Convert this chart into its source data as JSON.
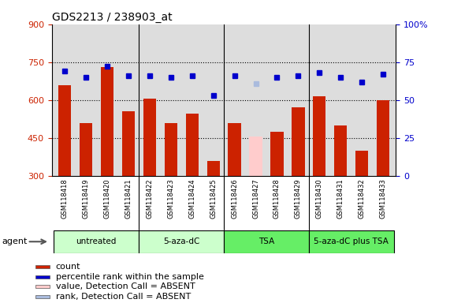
{
  "title": "GDS2213 / 238903_at",
  "samples": [
    "GSM118418",
    "GSM118419",
    "GSM118420",
    "GSM118421",
    "GSM118422",
    "GSM118423",
    "GSM118424",
    "GSM118425",
    "GSM118426",
    "GSM118427",
    "GSM118428",
    "GSM118429",
    "GSM118430",
    "GSM118431",
    "GSM118432",
    "GSM118433"
  ],
  "counts": [
    660,
    510,
    730,
    555,
    605,
    510,
    545,
    360,
    510,
    455,
    475,
    570,
    615,
    500,
    400,
    600
  ],
  "count_absent": [
    false,
    false,
    false,
    false,
    false,
    false,
    false,
    false,
    false,
    true,
    false,
    false,
    false,
    false,
    false,
    false
  ],
  "percentile_ranks": [
    69,
    65,
    72,
    66,
    66,
    65,
    66,
    53,
    66,
    61,
    65,
    66,
    68,
    65,
    62,
    67
  ],
  "rank_absent": [
    false,
    false,
    false,
    false,
    false,
    false,
    false,
    false,
    false,
    true,
    false,
    false,
    false,
    false,
    false,
    false
  ],
  "groups": [
    {
      "label": "untreated",
      "start": 0,
      "end": 3,
      "color": "#ccffcc"
    },
    {
      "label": "5-aza-dC",
      "start": 4,
      "end": 7,
      "color": "#ccffcc"
    },
    {
      "label": "TSA",
      "start": 8,
      "end": 11,
      "color": "#66ee66"
    },
    {
      "label": "5-aza-dC plus TSA",
      "start": 12,
      "end": 15,
      "color": "#66ee66"
    }
  ],
  "ylim_left": [
    300,
    900
  ],
  "ylim_right": [
    0,
    100
  ],
  "yticks_left": [
    300,
    450,
    600,
    750,
    900
  ],
  "yticks_right": [
    0,
    25,
    50,
    75,
    100
  ],
  "ytick_labels_right": [
    "0",
    "25",
    "50",
    "75",
    "100%"
  ],
  "bar_color": "#cc2200",
  "bar_absent_color": "#ffcccc",
  "rank_color": "#0000cc",
  "rank_absent_color": "#aabbdd",
  "background_color": "#ffffff",
  "plot_bg": "#dddddd",
  "agent_label": "agent",
  "legend": [
    {
      "label": "count",
      "color": "#cc2200"
    },
    {
      "label": "percentile rank within the sample",
      "color": "#0000cc"
    },
    {
      "label": "value, Detection Call = ABSENT",
      "color": "#ffcccc"
    },
    {
      "label": "rank, Detection Call = ABSENT",
      "color": "#aabbdd"
    }
  ]
}
